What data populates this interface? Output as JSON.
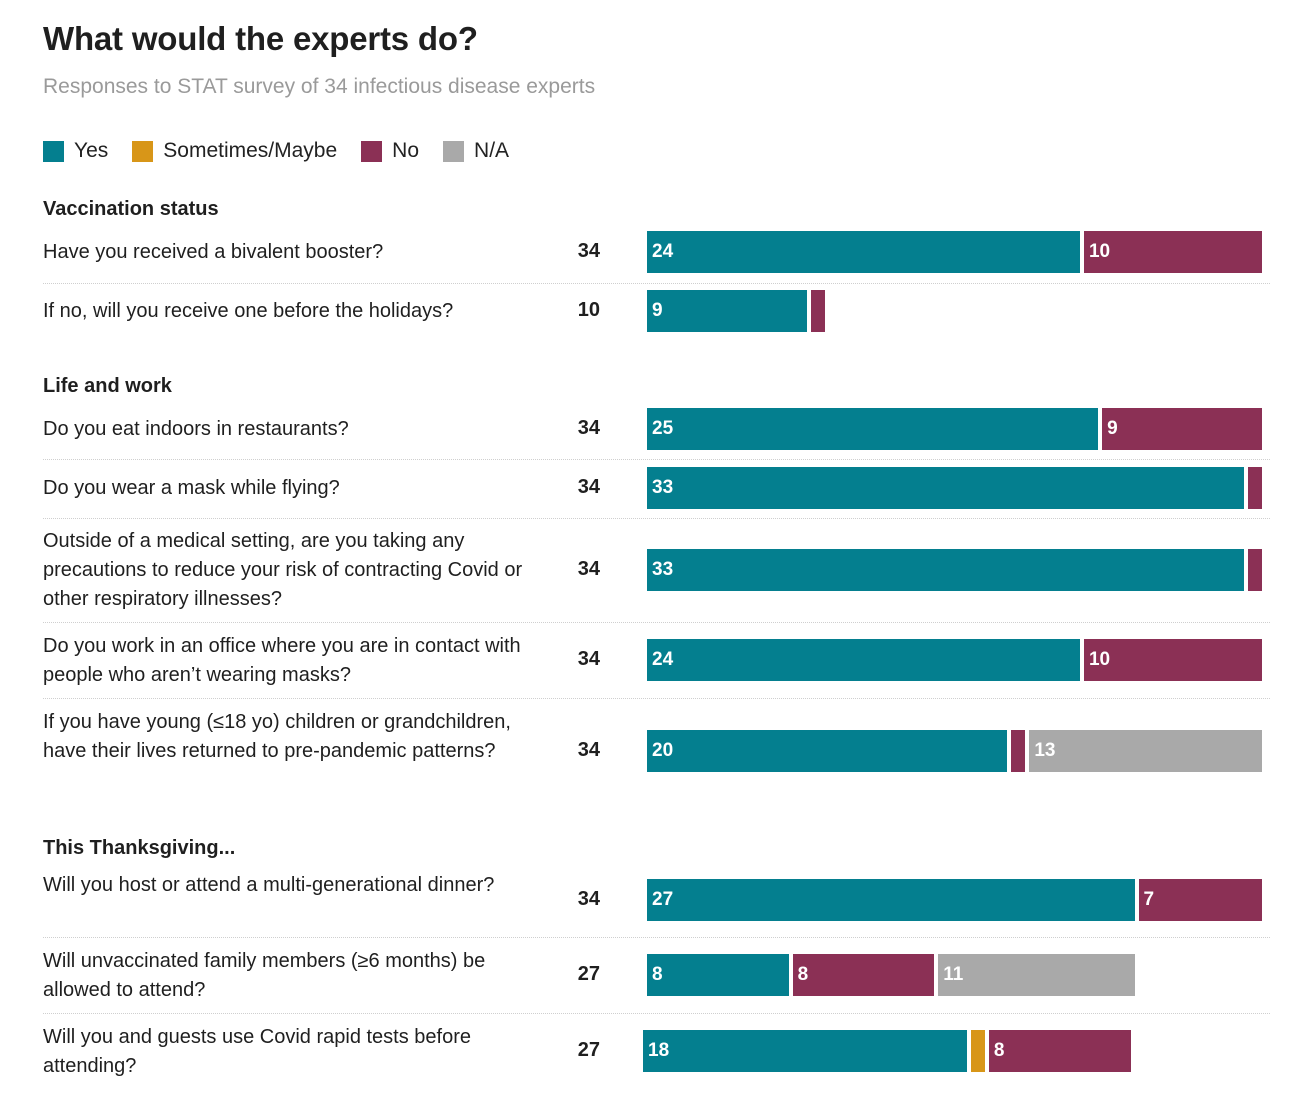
{
  "header": {
    "title": "What would the experts do?",
    "subtitle": "Responses to STAT survey of 34 infectious disease experts"
  },
  "colors": {
    "yes": "#047f8f",
    "maybe": "#d89618",
    "no": "#8b3055",
    "na": "#a9a9a9"
  },
  "legend": [
    {
      "key": "yes",
      "label": "Yes"
    },
    {
      "key": "maybe",
      "label": "Sometimes/Maybe"
    },
    {
      "key": "no",
      "label": "No"
    },
    {
      "key": "na",
      "label": "N/A"
    }
  ],
  "chart_data": {
    "type": "bar",
    "orientation": "horizontal",
    "stacked": true,
    "title": "What would the experts do?",
    "subtitle": "Responses to STAT survey of 34 infectious disease experts",
    "legend": [
      "Yes",
      "Sometimes/Maybe",
      "No",
      "N/A"
    ],
    "legend_position": "top-left",
    "scale_max": 34,
    "series_keys": [
      "yes",
      "maybe",
      "no",
      "na"
    ],
    "sections": [
      {
        "name": "Vaccination status",
        "rows": [
          {
            "question": "Have you received a bivalent booster?",
            "n": 34,
            "yes": 24,
            "maybe": 0,
            "no": 10,
            "na": 0
          },
          {
            "question": "If no, will you receive one before the holidays?",
            "n": 10,
            "yes": 9,
            "maybe": 0,
            "no": 1,
            "na": 0
          }
        ]
      },
      {
        "name": "Life and work",
        "rows": [
          {
            "question": "Do you eat indoors in restaurants?",
            "n": 34,
            "yes": 25,
            "maybe": 0,
            "no": 9,
            "na": 0
          },
          {
            "question": "Do you wear a mask while flying?",
            "n": 34,
            "yes": 33,
            "maybe": 0,
            "no": 1,
            "na": 0
          },
          {
            "question": "Outside of a medical setting, are you taking any precautions to reduce your risk of contracting Covid or other respiratory illnesses?",
            "n": 34,
            "yes": 33,
            "maybe": 0,
            "no": 1,
            "na": 0
          },
          {
            "question": "Do you work in an office where you are in contact with people who aren’t wearing masks?",
            "n": 34,
            "yes": 24,
            "maybe": 0,
            "no": 10,
            "na": 0
          },
          {
            "question": "If you have young (≤18 yo) children or grandchildren, have their lives returned to pre-pandemic patterns?",
            "n": 34,
            "yes": 20,
            "maybe": 0,
            "no": 1,
            "na": 13
          }
        ]
      },
      {
        "name": "This Thanksgiving...",
        "rows": [
          {
            "question": "Will you host or attend a multi-generational dinner?",
            "n": 34,
            "yes": 27,
            "maybe": 0,
            "no": 7,
            "na": 0
          },
          {
            "question": "Will unvaccinated family members (≥6 months) be allowed to attend?",
            "n": 27,
            "yes": 8,
            "maybe": 0,
            "no": 8,
            "na": 11
          },
          {
            "question": "Will you and guests use Covid rapid tests before attending?",
            "n": 27,
            "yes": 18,
            "maybe": 1,
            "no": 8,
            "na": 0
          }
        ]
      }
    ]
  }
}
